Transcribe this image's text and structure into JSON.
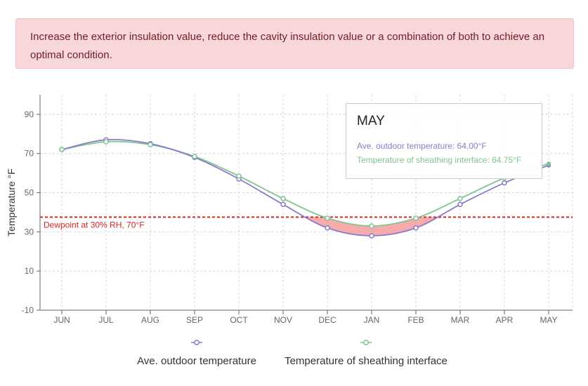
{
  "alert": {
    "message": "Increase the exterior insulation value, reduce the cavity insulation value or a combination of both to achieve an optimal condition."
  },
  "colors": {
    "alert_bg": "#f8d7da",
    "alert_text": "#721c24",
    "outdoor_series": "#8a7bc9",
    "sheathing_series": "#7fc493",
    "dewpoint_line": "#d62728",
    "condensation_fill": "#f5a3a3"
  },
  "chart_data": {
    "type": "line",
    "title": "",
    "xlabel": "",
    "ylabel": "Temperature °F",
    "ylim": [
      -10,
      100
    ],
    "yticks": [
      -10,
      10,
      30,
      50,
      70,
      90
    ],
    "grid": true,
    "legend_position": "bottom",
    "categories": [
      "JUN",
      "JUL",
      "AUG",
      "SEP",
      "OCT",
      "NOV",
      "DEC",
      "JAN",
      "FEB",
      "MAR",
      "APR",
      "MAY"
    ],
    "series": [
      {
        "name": "Ave. outdoor temperature",
        "color": "#8a7bc9",
        "values": [
          72,
          77,
          75,
          68,
          57,
          44,
          32,
          28,
          32,
          44,
          55,
          64
        ]
      },
      {
        "name": "Temperature of sheathing interface",
        "color": "#7fc493",
        "values": [
          72,
          76,
          74.5,
          68.5,
          58.5,
          47,
          37,
          33,
          37,
          47,
          57.5,
          64.75
        ]
      }
    ],
    "reference_line": {
      "label": "Dewpoint at 30% RH, 70°F",
      "value": 37.5
    }
  },
  "tooltip": {
    "title": "MAY",
    "line1": "Ave. outdoor temperature: 64.00°F",
    "line2": "Temperature of sheathing interface: 64.75°F"
  },
  "legend": {
    "items": [
      "Ave. outdoor temperature",
      "Temperature of sheathing interface"
    ]
  }
}
